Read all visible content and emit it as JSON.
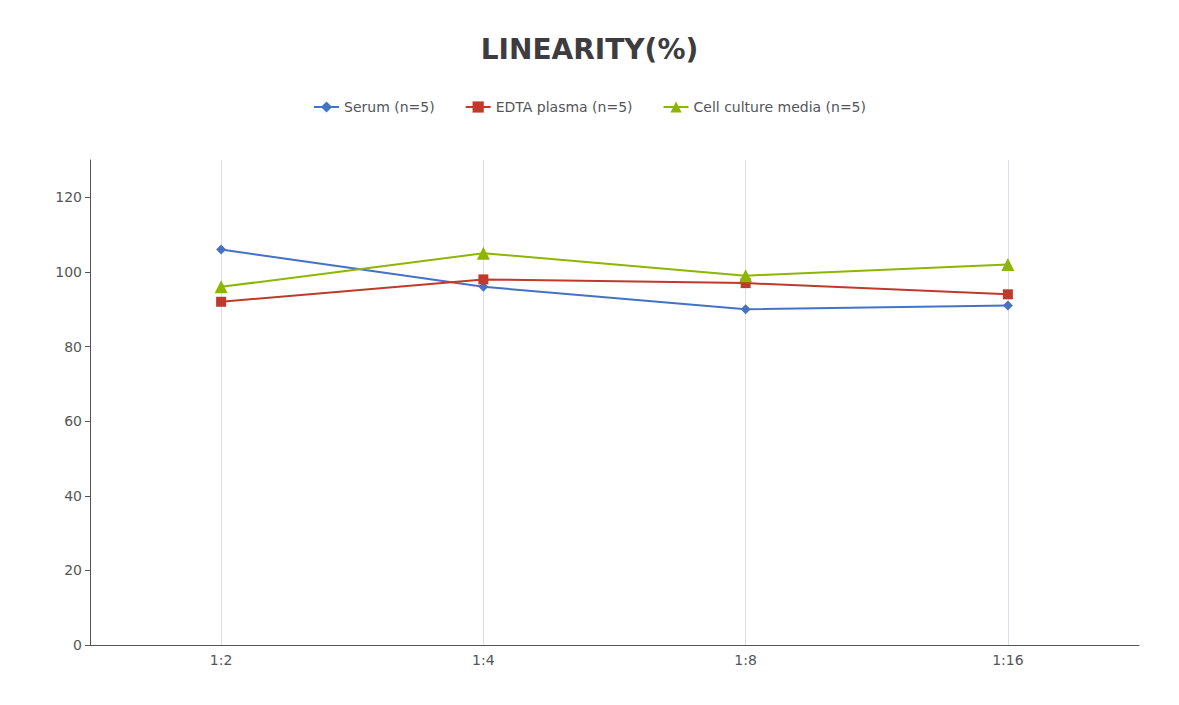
{
  "chart_data": {
    "type": "line",
    "title": "LINEARITY(%)",
    "categories": [
      "1:2",
      "1:4",
      "1:8",
      "1:16"
    ],
    "series": [
      {
        "name": "Serum (n=5)",
        "values": [
          106,
          96,
          90,
          91
        ],
        "color": "#4472C4",
        "marker": "diamond"
      },
      {
        "name": "EDTA plasma (n=5)",
        "values": [
          92,
          98,
          97,
          94
        ],
        "color": "#C0392B",
        "marker": "square"
      },
      {
        "name": "Cell culture media (n=5)",
        "values": [
          96,
          105,
          99,
          102
        ],
        "color": "#8DB600",
        "marker": "triangle"
      }
    ],
    "ylim": [
      0,
      130
    ],
    "yticks": [
      0,
      20,
      40,
      60,
      80,
      100,
      120
    ],
    "grid": "x",
    "legend": "top"
  }
}
